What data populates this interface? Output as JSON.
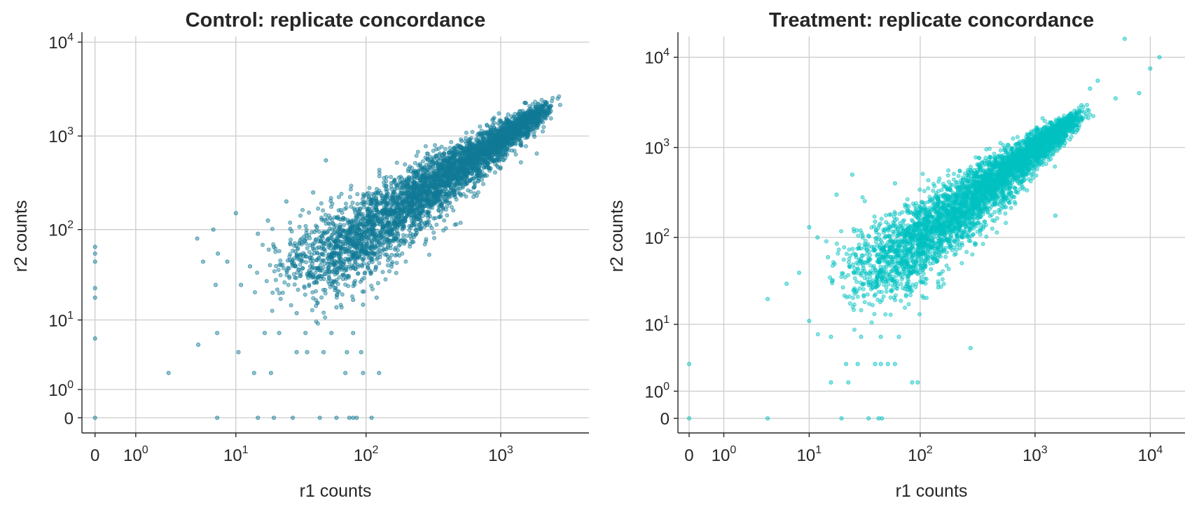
{
  "chart_data": [
    {
      "type": "scatter",
      "title": "Control: replicate concordance",
      "xlabel": "r1 counts",
      "ylabel": "r2 counts",
      "x_scale": "symlog",
      "y_scale": "symlog",
      "x_ticks": [
        "0",
        "10^0",
        "10^1",
        "10^2",
        "10^3"
      ],
      "y_ticks": [
        "0",
        "10^0",
        "10^1",
        "10^2",
        "10^3",
        "10^4"
      ],
      "xlim": [
        -0.25,
        4500
      ],
      "ylim": [
        -0.45,
        11500
      ],
      "grid": true,
      "color": "#117a96",
      "marker_alpha": 0.45,
      "point_count_approx": 20000,
      "trend": "r2 ≈ r1; dense cloud from ~30 to ~2500 counts on both axes",
      "points": [
        [
          0,
          0
        ],
        [
          0,
          6
        ],
        [
          0,
          18
        ],
        [
          0,
          23
        ],
        [
          0,
          45
        ],
        [
          0,
          55
        ],
        [
          0,
          65
        ],
        [
          7,
          0
        ],
        [
          15,
          0
        ],
        [
          20,
          0
        ],
        [
          28,
          0
        ],
        [
          45,
          0
        ],
        [
          60,
          0
        ],
        [
          75,
          0
        ],
        [
          80,
          0
        ],
        [
          85,
          0
        ],
        [
          110,
          0
        ],
        [
          2.5,
          2
        ],
        [
          14,
          2
        ],
        [
          19,
          2
        ],
        [
          70,
          2
        ],
        [
          95,
          2
        ],
        [
          125,
          2
        ],
        [
          10.5,
          4
        ],
        [
          30,
          4
        ],
        [
          36,
          4
        ],
        [
          48,
          4
        ],
        [
          72,
          4
        ],
        [
          92,
          4
        ],
        [
          4.8,
          5
        ],
        [
          7,
          7
        ],
        [
          17,
          7
        ],
        [
          22,
          7
        ],
        [
          35,
          7
        ],
        [
          55,
          7
        ],
        [
          80,
          7
        ],
        [
          4.7,
          80
        ],
        [
          5.3,
          45
        ],
        [
          6.5,
          100
        ],
        [
          7.1,
          55
        ],
        [
          6.8,
          25
        ],
        [
          8.5,
          45
        ],
        [
          10,
          150
        ],
        [
          11,
          25
        ],
        [
          13,
          40
        ],
        [
          15,
          90
        ],
        [
          18,
          125
        ],
        [
          20,
          65
        ],
        [
          25,
          200
        ],
        [
          30,
          12
        ],
        [
          40,
          250
        ],
        [
          50,
          550
        ],
        [
          60,
          14
        ],
        [
          80,
          17
        ],
        [
          95,
          15
        ],
        [
          120,
          18
        ]
      ]
    },
    {
      "type": "scatter",
      "title": "Treatment: replicate concordance",
      "xlabel": "r1 counts",
      "ylabel": "r2 counts",
      "x_scale": "symlog",
      "y_scale": "symlog",
      "x_ticks": [
        "0",
        "10^0",
        "10^1",
        "10^2",
        "10^3",
        "10^4"
      ],
      "y_ticks": [
        "0",
        "10^0",
        "10^1",
        "10^2",
        "10^3",
        "10^4"
      ],
      "xlim": [
        -0.25,
        20000
      ],
      "ylim": [
        -0.45,
        17000
      ],
      "grid": true,
      "color": "#00c2c2",
      "marker_alpha": 0.45,
      "point_count_approx": 20000,
      "trend": "r2 ≈ r1; dense cloud from ~20 to ~2500 counts on both axes",
      "points": [
        [
          0,
          0
        ],
        [
          0,
          3
        ],
        [
          3.8,
          0
        ],
        [
          20,
          0
        ],
        [
          35,
          0
        ],
        [
          43,
          0
        ],
        [
          46,
          0
        ],
        [
          16,
          1.5
        ],
        [
          23,
          1.5
        ],
        [
          85,
          1.5
        ],
        [
          95,
          1.5
        ],
        [
          22,
          3
        ],
        [
          28,
          3
        ],
        [
          40,
          3
        ],
        [
          45,
          3
        ],
        [
          52,
          3
        ],
        [
          60,
          3
        ],
        [
          16,
          7
        ],
        [
          30,
          7
        ],
        [
          45,
          7
        ],
        [
          65,
          7
        ],
        [
          275,
          5
        ],
        [
          3.8,
          20
        ],
        [
          6,
          30
        ],
        [
          8,
          40
        ],
        [
          10,
          130
        ],
        [
          10,
          11
        ],
        [
          12,
          100
        ],
        [
          15,
          60
        ],
        [
          18,
          300
        ],
        [
          25,
          500
        ],
        [
          40,
          150
        ],
        [
          60,
          400
        ],
        [
          300,
          200
        ],
        [
          400,
          250
        ],
        [
          1500,
          175
        ],
        [
          3000,
          4500
        ],
        [
          3500,
          5500
        ],
        [
          5000,
          3500
        ],
        [
          6000,
          16000
        ],
        [
          8000,
          4000
        ],
        [
          10000,
          7500
        ],
        [
          12000,
          10000
        ]
      ]
    }
  ]
}
